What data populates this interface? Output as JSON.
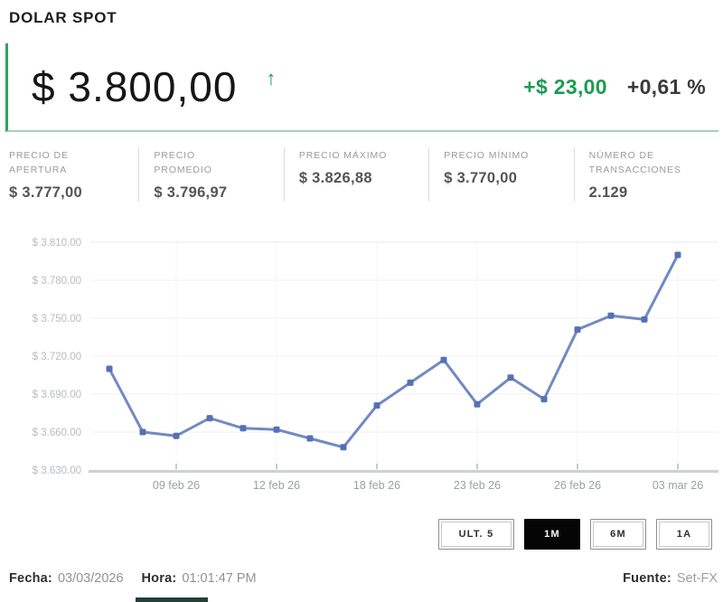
{
  "header": {
    "title": "DOLAR SPOT"
  },
  "quote": {
    "price": "$ 3.800,00",
    "trend_arrow": "↑",
    "change_abs": "+$ 23,00",
    "change_pct": "+0,61 %"
  },
  "colors": {
    "positive_green": "#1d9b52",
    "panel_border_green": "#35a15d",
    "panel_underline_green": "#a9d0b4",
    "selected_button_black": "#050505"
  },
  "stats": [
    {
      "label": "PRECIO DE\nAPERTURA",
      "value": "$ 3.777,00"
    },
    {
      "label": "PRECIO\nPROMEDIO",
      "value": "$ 3.796,97"
    },
    {
      "label": "PRECIO MÁXIMO",
      "value": "$ 3.826,88"
    },
    {
      "label": "PRECIO MÍNIMO",
      "value": "$ 3.770,00"
    },
    {
      "label": "NÚMERO DE\nTRANSACCIONES",
      "value": "2.129"
    }
  ],
  "chart_data": {
    "type": "line",
    "title": "Dolar spot price history (1M view)",
    "xlabel": "",
    "ylabel": "",
    "series": [
      {
        "name": "Dolar spot",
        "values": [
          3710,
          3660,
          3657,
          3671,
          3663,
          3662,
          3655,
          3648,
          3681,
          3699,
          3717,
          3682,
          3703,
          3686,
          3741,
          3752,
          3749,
          3800
        ]
      }
    ],
    "x_tick_labels": [
      "09 feb 26",
      "12 feb 26",
      "18 feb 26",
      "23 feb 26",
      "26 feb 26",
      "03 mar 26"
    ],
    "x_tick_indices": [
      2,
      5,
      8,
      11,
      14,
      17
    ],
    "y_ticks": [
      3810,
      3780,
      3750,
      3720,
      3690,
      3660,
      3630
    ],
    "y_tick_labels": [
      "$ 3.810.00",
      "$ 3.780.00",
      "$ 3.750.00",
      "$ 3.720.00",
      "$ 3.690.00",
      "$ 3.660.00",
      "$ 3.630.00"
    ],
    "ylim": [
      3630,
      3810
    ],
    "grid": true,
    "legend_position": "none",
    "line_color": "#7289c4",
    "marker_color": "#5471b6"
  },
  "range_buttons": [
    {
      "label": "ULT. 5",
      "selected": false
    },
    {
      "label": "1M",
      "selected": true
    },
    {
      "label": "6M",
      "selected": false
    },
    {
      "label": "1A",
      "selected": false
    }
  ],
  "footer": {
    "date_label": "Fecha:",
    "date_value": "03/03/2026",
    "time_label": "Hora:",
    "time_value": "01:01:47 PM",
    "source_label": "Fuente:",
    "source_value": "Set-FX"
  }
}
